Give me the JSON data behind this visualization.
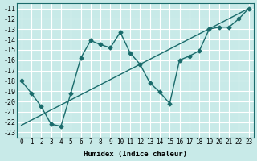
{
  "xlabel": "Humidex (Indice chaleur)",
  "bg_color": "#c8eae8",
  "grid_color": "#ffffff",
  "line_color": "#1a6b6b",
  "xlim": [
    -0.5,
    23.5
  ],
  "ylim": [
    -23.5,
    -10.5
  ],
  "xticks": [
    0,
    1,
    2,
    3,
    4,
    5,
    6,
    7,
    8,
    9,
    10,
    11,
    12,
    13,
    14,
    15,
    16,
    17,
    18,
    19,
    20,
    21,
    22,
    23
  ],
  "yticks": [
    -11,
    -12,
    -13,
    -14,
    -15,
    -16,
    -17,
    -18,
    -19,
    -20,
    -21,
    -22,
    -23
  ],
  "line1_x": [
    0,
    1,
    2,
    3,
    4,
    5,
    6,
    7,
    8,
    9,
    10,
    11,
    12,
    13,
    14,
    15,
    16,
    17,
    18,
    19,
    20,
    21,
    22,
    23
  ],
  "line1_y": [
    -18,
    -19.2,
    -20.5,
    -22.2,
    -22.4,
    -19.2,
    -15.8,
    -14.1,
    -14.5,
    -14.8,
    -13.3,
    -15.3,
    -16.4,
    -18.2,
    -19.1,
    -20.2,
    -16.0,
    -15.6,
    -15.1,
    -13.0,
    -12.8,
    -12.8,
    -12.0,
    -11.0
  ],
  "line2_x": [
    0,
    23
  ],
  "line2_y": [
    -22.3,
    -11.0
  ]
}
